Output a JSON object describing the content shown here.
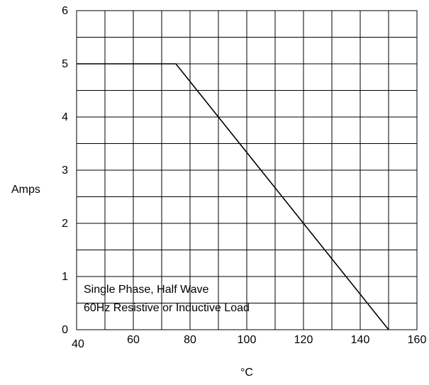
{
  "chart_data": {
    "type": "line",
    "title": "",
    "xlabel": "°C",
    "ylabel": "Amps",
    "xlim": [
      40,
      160
    ],
    "ylim": [
      0,
      6
    ],
    "x_ticks": [
      40,
      60,
      80,
      100,
      120,
      140,
      160
    ],
    "y_ticks": [
      0,
      1,
      2,
      3,
      4,
      5,
      6
    ],
    "x_minor_step": 10,
    "y_minor_step": 0.5,
    "grid": true,
    "series": [
      {
        "x": [
          40,
          75,
          150
        ],
        "y": [
          5,
          5,
          0
        ]
      }
    ],
    "annotations": [
      "Single Phase, Half Wave",
      "60Hz Resistive or Inductive Load"
    ],
    "line_color": "#000000",
    "grid_color": "#000000"
  }
}
